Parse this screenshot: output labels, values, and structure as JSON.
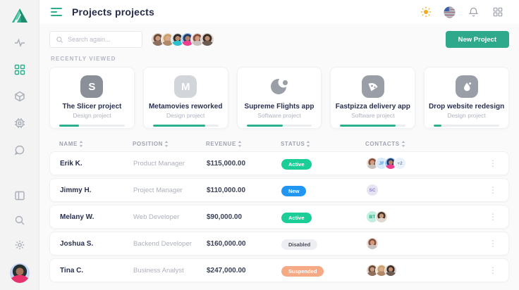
{
  "header": {
    "title": "Projects projects",
    "search_placeholder": "Search again...",
    "new_project_label": "New Project"
  },
  "colors": {
    "accent_green": "#2fa98c",
    "progress_green": "#2bae8c",
    "status_active": "#1bce97",
    "status_new": "#2196f3",
    "status_disabled_bg": "#edeef2",
    "status_suspended": "#f5a985",
    "sun_icon": "#f6a821",
    "title_navy": "#262b49"
  },
  "sidebar": {
    "items": [
      {
        "name": "logo",
        "icon": "triangle-logo"
      },
      {
        "name": "activity",
        "icon": "pulse-icon",
        "active": false
      },
      {
        "name": "dashboard",
        "icon": "grid-icon",
        "active": true
      },
      {
        "name": "packages",
        "icon": "cube-icon",
        "active": false
      },
      {
        "name": "system",
        "icon": "chip-icon",
        "active": false
      },
      {
        "name": "messages",
        "icon": "chat-icon",
        "active": false
      },
      {
        "name": "panels",
        "icon": "layout-icon",
        "active": false
      },
      {
        "name": "search",
        "icon": "search-icon",
        "active": false
      },
      {
        "name": "settings",
        "icon": "gear-icon",
        "active": false
      },
      {
        "name": "profile",
        "icon": "user-avatar",
        "active": false
      }
    ]
  },
  "toolbar": {
    "team_avatar_count": 6
  },
  "recently_viewed": {
    "label": "Recently viewed",
    "cards": [
      {
        "title": "The Slicer project",
        "subtitle": "Design project",
        "icon_letter": "S",
        "icon": "s-squircle-icon",
        "progress": 30
      },
      {
        "title": "Metamovies reworked",
        "subtitle": "Design project",
        "icon_letter": "M",
        "icon": "m-squircle-icon",
        "progress": 80
      },
      {
        "title": "Supreme Flights app",
        "subtitle": "Software project",
        "icon_letter": "",
        "icon": "moon-icon",
        "progress": 55
      },
      {
        "title": "Fastpizza delivery app",
        "subtitle": "Software project",
        "icon_letter": "",
        "icon": "pizza-icon",
        "progress": 85
      },
      {
        "title": "Drop website redesign",
        "subtitle": "Design project",
        "icon_letter": "",
        "icon": "drop-icon",
        "progress": 12
      }
    ]
  },
  "table": {
    "columns": [
      {
        "label": "Name"
      },
      {
        "label": "Position"
      },
      {
        "label": "Revenue"
      },
      {
        "label": "Status"
      },
      {
        "label": "Contacts"
      }
    ],
    "rows": [
      {
        "name": "Erik K.",
        "position": "Product Manager",
        "revenue": "$115,000.00",
        "status": "Active",
        "contacts": [
          {
            "type": "photo"
          },
          {
            "type": "initials",
            "label": "JF"
          },
          {
            "type": "photo"
          },
          {
            "type": "more",
            "label": "+2"
          }
        ]
      },
      {
        "name": "Jimmy H.",
        "position": "Project Manager",
        "revenue": "$110,000.00",
        "status": "New",
        "contacts": [
          {
            "type": "initials",
            "label": "SC"
          }
        ]
      },
      {
        "name": "Melany W.",
        "position": "Web Developer",
        "revenue": "$90,000.00",
        "status": "Active",
        "contacts": [
          {
            "type": "initials",
            "label": "BT"
          },
          {
            "type": "photo"
          }
        ]
      },
      {
        "name": "Joshua S.",
        "position": "Backend Developer",
        "revenue": "$160,000.00",
        "status": "Disabled",
        "contacts": [
          {
            "type": "photo"
          }
        ]
      },
      {
        "name": "Tina C.",
        "position": "Business Analyst",
        "revenue": "$247,000.00",
        "status": "Suspended",
        "contacts": [
          {
            "type": "photo"
          },
          {
            "type": "photo"
          },
          {
            "type": "photo"
          }
        ]
      }
    ]
  }
}
